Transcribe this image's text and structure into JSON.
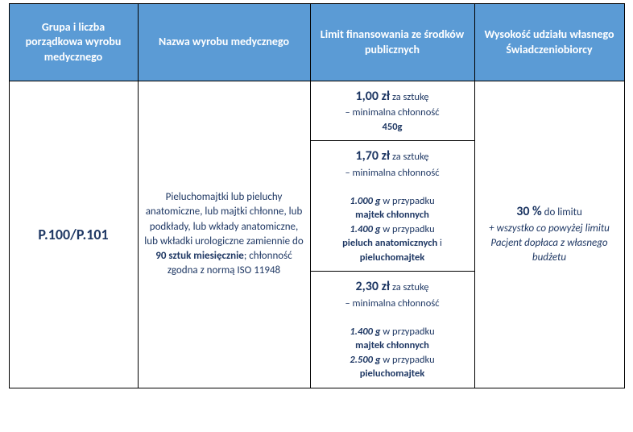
{
  "headers": {
    "col0": "Grupa i liczba porządkowa wyrobu medycznego",
    "col1": "Nazwa wyrobu medycznego",
    "col2": "Limit finansowania ze środków publicznych",
    "col3": "Wysokość udziału własnego Świadczeniobiorcy"
  },
  "row": {
    "code": "P.100/P.101",
    "name": {
      "pre": "Pieluchomajtki lub pieluchy anatomiczne, lub majtki chłonne, lub podkłady, lub wkłady anatomiczne, lub wkładki urologiczne zamiennie do ",
      "bold": "90 sztuk miesięcznie",
      "post": "; chłonność zgodna z normą ISO 11948"
    },
    "limits": [
      {
        "price": "1,00 zł",
        "per": " za sztukę",
        "dashline": "– minimalna chłonność",
        "tail_bold": "450g",
        "details": []
      },
      {
        "price": "1,70 zł",
        "per": " za sztukę",
        "dashline": "– minimalna chłonność",
        "tail_bold": "",
        "details": [
          {
            "g": "1.000 g",
            "txt": " w przypadku ",
            "bold": "majtek chłonnych"
          },
          {
            "g": "1.400 g",
            "txt": " w przypadku ",
            "bold": "pieluch anatomicznych",
            "and": " i ",
            "bold2": "pieluchomajtek"
          }
        ]
      },
      {
        "price": "2,30 zł",
        "per": " za sztukę",
        "dashline": "– minimalna chłonność",
        "tail_bold": "",
        "details": [
          {
            "g": "1.400 g",
            "txt": " w przypadku ",
            "bold": "majtek chłonnych"
          },
          {
            "g": "2.500 g",
            "txt": " w przypadku ",
            "bold": "pieluchomajtek"
          }
        ]
      }
    ],
    "share": {
      "pct": "30 %",
      "pct_suffix": " do limitu",
      "note": "+ wszystko co powyżej limitu Pacjent dopłaca z własnego budżetu"
    }
  },
  "colors": {
    "header_bg": "#5b9bd5",
    "header_fg": "#ffffff",
    "text": "#1f3864",
    "border": "#000000"
  }
}
